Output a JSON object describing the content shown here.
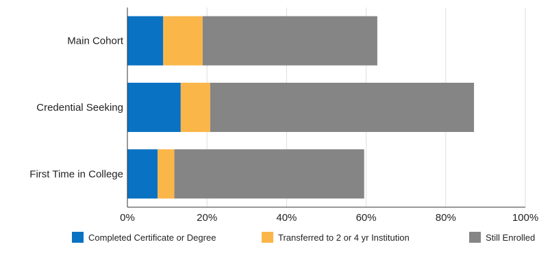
{
  "chart_data": {
    "type": "bar",
    "orientation": "horizontal",
    "stacked": true,
    "categories": [
      "Main Cohort",
      "Credential Seeking",
      "First Time in College"
    ],
    "series": [
      {
        "name": "Completed Certificate or Degree",
        "color": "#0a72c2",
        "values": [
          9,
          13.4,
          7.6
        ]
      },
      {
        "name": "Transferred to 2 or 4 yr Institution",
        "color": "#fbb649",
        "values": [
          9.9,
          7.4,
          4.2
        ]
      },
      {
        "name": "Still Enrolled",
        "color": "#858585",
        "values": [
          43.9,
          66.3,
          47.7
        ]
      }
    ],
    "x_ticks": [
      "0%",
      "20%",
      "40%",
      "60%",
      "80%",
      "100%"
    ],
    "xlim": [
      0,
      100
    ],
    "grid": true,
    "legend_position": "bottom"
  }
}
